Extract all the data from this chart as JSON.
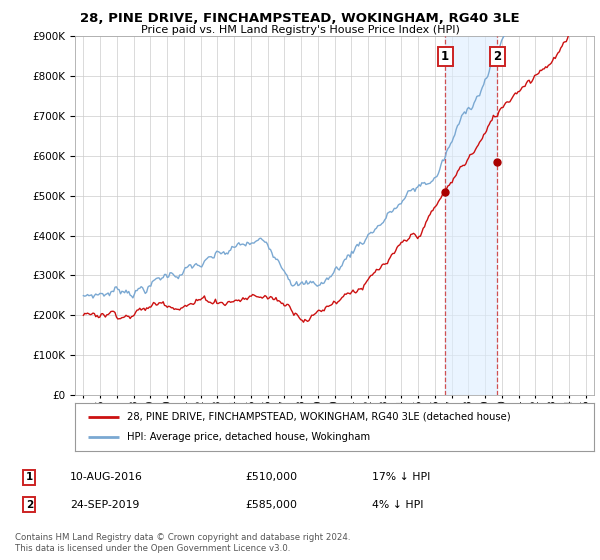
{
  "title": "28, PINE DRIVE, FINCHAMPSTEAD, WOKINGHAM, RG40 3LE",
  "subtitle": "Price paid vs. HM Land Registry's House Price Index (HPI)",
  "hpi_label": "HPI: Average price, detached house, Wokingham",
  "property_label": "28, PINE DRIVE, FINCHAMPSTEAD, WOKINGHAM, RG40 3LE (detached house)",
  "transaction1_date": "10-AUG-2016",
  "transaction1_price": "£510,000",
  "transaction1_hpi": "17% ↓ HPI",
  "transaction2_date": "24-SEP-2019",
  "transaction2_price": "£585,000",
  "transaction2_hpi": "4% ↓ HPI",
  "footer": "Contains HM Land Registry data © Crown copyright and database right 2024.\nThis data is licensed under the Open Government Licence v3.0.",
  "hpi_color": "#7aa8d2",
  "property_color": "#cc1111",
  "marker_color": "#aa0000",
  "dashed_color": "#cc3333",
  "shade_color": "#ddeeff",
  "background_color": "#ffffff",
  "grid_color": "#cccccc",
  "ylim": [
    0,
    900000
  ],
  "yticks": [
    0,
    100000,
    200000,
    300000,
    400000,
    500000,
    600000,
    700000,
    800000,
    900000
  ],
  "xmin": 1994.5,
  "xmax": 2025.5,
  "transaction1_x": 2016.61,
  "transaction2_x": 2019.73,
  "transaction1_y": 510000,
  "transaction2_y": 585000
}
